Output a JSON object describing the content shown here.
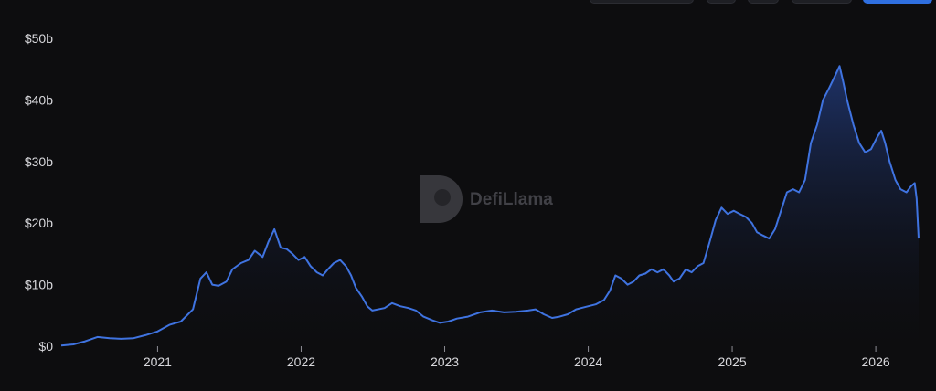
{
  "toolbar": {
    "buttons": [
      "",
      "",
      "",
      "",
      ""
    ]
  },
  "watermark": {
    "text": "DefiLlama"
  },
  "chart_data": {
    "type": "area",
    "title": "",
    "xlabel": "",
    "ylabel": "",
    "x_ticks": [
      "2021",
      "2022",
      "2023",
      "2024",
      "2025",
      "2026"
    ],
    "y_ticks": [
      "$0",
      "$10b",
      "$20b",
      "$30b",
      "$40b",
      "$50b"
    ],
    "ylim": [
      0,
      50
    ],
    "xlim": [
      "2020-05-01",
      "2026-04-20"
    ],
    "grid": false,
    "legend": "none",
    "colors": {
      "line": "#3f73e0",
      "fill_top": "#243f86",
      "fill_bottom": "#0d0d0f",
      "text": "#d8d8dc",
      "background": "#0d0d0f"
    },
    "series": [
      {
        "values": [
          [
            "2020-05-01",
            0.1
          ],
          [
            "2020-06-01",
            0.3
          ],
          [
            "2020-07-01",
            0.8
          ],
          [
            "2020-08-01",
            1.5
          ],
          [
            "2020-09-01",
            1.3
          ],
          [
            "2020-10-01",
            1.2
          ],
          [
            "2020-11-01",
            1.3
          ],
          [
            "2020-12-01",
            1.8
          ],
          [
            "2021-01-01",
            2.4
          ],
          [
            "2021-02-01",
            3.5
          ],
          [
            "2021-03-01",
            4.0
          ],
          [
            "2021-04-01",
            6.0
          ],
          [
            "2021-04-20",
            11.0
          ],
          [
            "2021-05-05",
            12.0
          ],
          [
            "2021-05-20",
            10.0
          ],
          [
            "2021-06-05",
            9.8
          ],
          [
            "2021-06-25",
            10.5
          ],
          [
            "2021-07-10",
            12.5
          ],
          [
            "2021-08-01",
            13.5
          ],
          [
            "2021-08-20",
            14.0
          ],
          [
            "2021-09-05",
            15.5
          ],
          [
            "2021-09-25",
            14.5
          ],
          [
            "2021-10-10",
            17.0
          ],
          [
            "2021-10-25",
            19.0
          ],
          [
            "2021-11-10",
            16.0
          ],
          [
            "2021-11-25",
            15.8
          ],
          [
            "2021-12-10",
            15.0
          ],
          [
            "2021-12-25",
            14.0
          ],
          [
            "2022-01-10",
            14.5
          ],
          [
            "2022-01-25",
            13.0
          ],
          [
            "2022-02-10",
            12.0
          ],
          [
            "2022-02-25",
            11.5
          ],
          [
            "2022-03-10",
            12.5
          ],
          [
            "2022-03-25",
            13.5
          ],
          [
            "2022-04-10",
            14.0
          ],
          [
            "2022-04-25",
            13.0
          ],
          [
            "2022-05-08",
            11.5
          ],
          [
            "2022-05-20",
            9.5
          ],
          [
            "2022-06-05",
            8.0
          ],
          [
            "2022-06-18",
            6.5
          ],
          [
            "2022-07-01",
            5.8
          ],
          [
            "2022-08-01",
            6.2
          ],
          [
            "2022-08-20",
            7.0
          ],
          [
            "2022-09-10",
            6.5
          ],
          [
            "2022-10-01",
            6.2
          ],
          [
            "2022-10-20",
            5.8
          ],
          [
            "2022-11-08",
            4.8
          ],
          [
            "2022-12-01",
            4.2
          ],
          [
            "2022-12-20",
            3.8
          ],
          [
            "2023-01-10",
            4.0
          ],
          [
            "2023-02-01",
            4.5
          ],
          [
            "2023-03-01",
            4.8
          ],
          [
            "2023-04-01",
            5.5
          ],
          [
            "2023-05-01",
            5.8
          ],
          [
            "2023-06-01",
            5.5
          ],
          [
            "2023-07-01",
            5.6
          ],
          [
            "2023-08-01",
            5.8
          ],
          [
            "2023-08-20",
            6.0
          ],
          [
            "2023-09-10",
            5.2
          ],
          [
            "2023-10-01",
            4.6
          ],
          [
            "2023-10-20",
            4.8
          ],
          [
            "2023-11-10",
            5.2
          ],
          [
            "2023-12-01",
            6.0
          ],
          [
            "2024-01-01",
            6.5
          ],
          [
            "2024-01-20",
            6.8
          ],
          [
            "2024-02-10",
            7.5
          ],
          [
            "2024-02-25",
            9.0
          ],
          [
            "2024-03-10",
            11.5
          ],
          [
            "2024-03-25",
            11.0
          ],
          [
            "2024-04-10",
            10.0
          ],
          [
            "2024-04-25",
            10.5
          ],
          [
            "2024-05-10",
            11.5
          ],
          [
            "2024-05-25",
            11.8
          ],
          [
            "2024-06-10",
            12.5
          ],
          [
            "2024-06-25",
            12.0
          ],
          [
            "2024-07-10",
            12.5
          ],
          [
            "2024-07-25",
            11.5
          ],
          [
            "2024-08-05",
            10.5
          ],
          [
            "2024-08-20",
            11.0
          ],
          [
            "2024-09-05",
            12.5
          ],
          [
            "2024-09-20",
            12.0
          ],
          [
            "2024-10-05",
            13.0
          ],
          [
            "2024-10-20",
            13.5
          ],
          [
            "2024-11-05",
            17.0
          ],
          [
            "2024-11-20",
            20.5
          ],
          [
            "2024-12-05",
            22.5
          ],
          [
            "2024-12-20",
            21.5
          ],
          [
            "2025-01-05",
            22.0
          ],
          [
            "2025-01-20",
            21.5
          ],
          [
            "2025-02-05",
            21.0
          ],
          [
            "2025-02-20",
            20.0
          ],
          [
            "2025-03-05",
            18.5
          ],
          [
            "2025-03-20",
            18.0
          ],
          [
            "2025-04-05",
            17.5
          ],
          [
            "2025-04-20",
            19.0
          ],
          [
            "2025-05-05",
            22.0
          ],
          [
            "2025-05-20",
            25.0
          ],
          [
            "2025-06-05",
            25.5
          ],
          [
            "2025-06-20",
            25.0
          ],
          [
            "2025-07-05",
            27.0
          ],
          [
            "2025-07-20",
            33.0
          ],
          [
            "2025-08-05",
            36.0
          ],
          [
            "2025-08-20",
            40.0
          ],
          [
            "2025-09-05",
            42.0
          ],
          [
            "2025-09-20",
            44.0
          ],
          [
            "2025-10-01",
            45.5
          ],
          [
            "2025-10-10",
            43.0
          ],
          [
            "2025-10-20",
            40.0
          ],
          [
            "2025-11-05",
            36.0
          ],
          [
            "2025-11-20",
            33.0
          ],
          [
            "2025-12-05",
            31.5
          ],
          [
            "2025-12-20",
            32.0
          ],
          [
            "2026-01-05",
            34.0
          ],
          [
            "2026-01-15",
            35.0
          ],
          [
            "2026-01-25",
            33.0
          ],
          [
            "2026-02-05",
            30.0
          ],
          [
            "2026-02-20",
            27.0
          ],
          [
            "2026-03-05",
            25.5
          ],
          [
            "2026-03-20",
            25.0
          ],
          [
            "2026-04-01",
            26.0
          ],
          [
            "2026-04-10",
            26.5
          ],
          [
            "2026-04-15",
            24.0
          ],
          [
            "2026-04-20",
            17.5
          ]
        ]
      }
    ]
  }
}
